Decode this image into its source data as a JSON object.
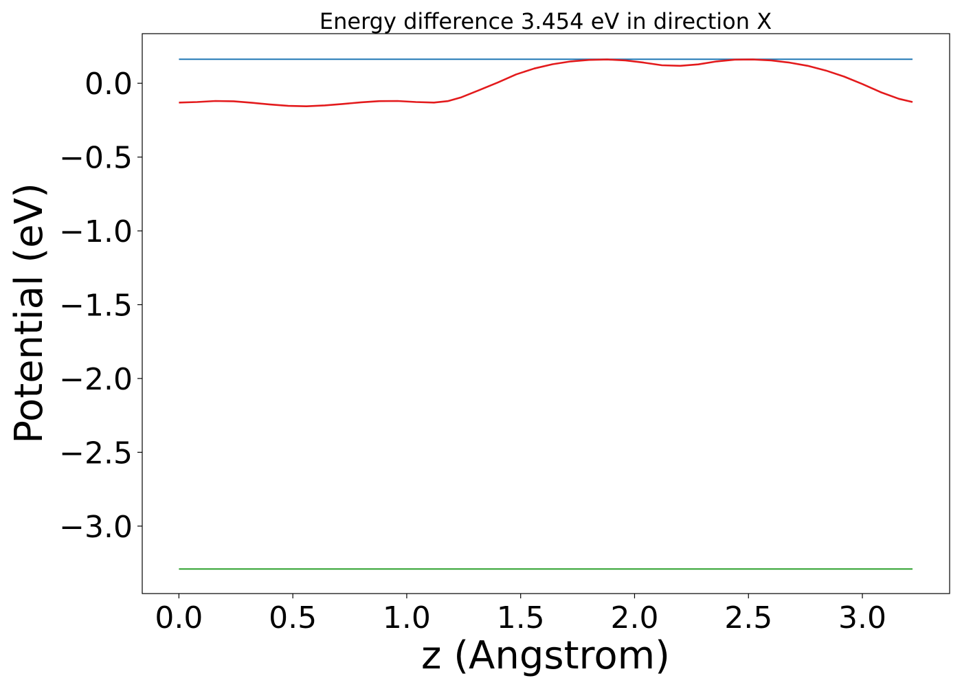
{
  "chart_data": {
    "type": "line",
    "title": "Energy difference 3.454 eV in direction X",
    "xlabel": "z (Angstrom)",
    "ylabel": "Potential (eV)",
    "xlim": [
      -0.161,
      3.383
    ],
    "ylim": [
      -3.457,
      0.336
    ],
    "xticks": [
      0.0,
      0.5,
      1.0,
      1.5,
      2.0,
      2.5,
      3.0
    ],
    "xtick_labels": [
      "0.0",
      "0.5",
      "1.0",
      "1.5",
      "2.0",
      "2.5",
      "3.0"
    ],
    "yticks": [
      0.0,
      -0.5,
      -1.0,
      -1.5,
      -2.0,
      -2.5,
      -3.0
    ],
    "ytick_labels": [
      "0.0",
      "−0.5",
      "−1.0",
      "−1.5",
      "−2.0",
      "−2.5",
      "−3.0"
    ],
    "grid": false,
    "legend": false,
    "series": [
      {
        "color": "#1f77b4",
        "x": [
          0.0,
          3.22
        ],
        "y": [
          0.163,
          0.163
        ]
      },
      {
        "color": "#2ca02c",
        "x": [
          0.0,
          3.22
        ],
        "y": [
          -3.291,
          -3.291
        ]
      },
      {
        "color": "#e31a1c",
        "x": [
          0.0,
          0.08,
          0.16,
          0.24,
          0.32,
          0.4,
          0.48,
          0.56,
          0.64,
          0.72,
          0.8,
          0.88,
          0.96,
          1.04,
          1.12,
          1.18,
          1.24,
          1.32,
          1.4,
          1.48,
          1.56,
          1.64,
          1.72,
          1.8,
          1.88,
          1.96,
          2.04,
          2.12,
          2.2,
          2.28,
          2.36,
          2.44,
          2.52,
          2.6,
          2.68,
          2.76,
          2.84,
          2.92,
          3.0,
          3.08,
          3.16,
          3.22
        ],
        "y": [
          -0.131,
          -0.127,
          -0.12,
          -0.122,
          -0.132,
          -0.144,
          -0.153,
          -0.156,
          -0.15,
          -0.14,
          -0.129,
          -0.121,
          -0.12,
          -0.127,
          -0.131,
          -0.121,
          -0.095,
          -0.045,
          0.005,
          0.06,
          0.1,
          0.129,
          0.148,
          0.158,
          0.161,
          0.155,
          0.14,
          0.122,
          0.118,
          0.128,
          0.148,
          0.16,
          0.161,
          0.155,
          0.14,
          0.118,
          0.086,
          0.045,
          -0.005,
          -0.06,
          -0.105,
          -0.127
        ]
      }
    ]
  }
}
